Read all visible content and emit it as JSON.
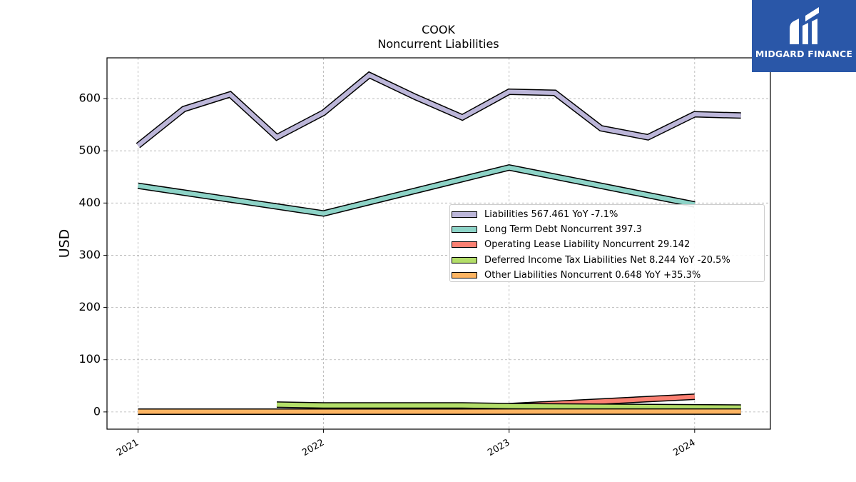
{
  "header": {
    "ticker": "COOK",
    "subtitle": "Noncurrent  Liabilities"
  },
  "logo": {
    "text": "MIDGARD FINANCE",
    "background": "#2a57a8"
  },
  "chart_data": {
    "type": "area",
    "ylabel": "USD",
    "xlabel": "",
    "ylim": [
      -33,
      678
    ],
    "yticks": [
      0,
      100,
      200,
      300,
      400,
      500,
      600
    ],
    "xlim": [
      "2020-11-01",
      "2024-05-29"
    ],
    "xticks": [
      "2021-01-01",
      "2022-01-01",
      "2023-01-01",
      "2024-01-01"
    ],
    "xtick_labels": [
      "2021",
      "2022",
      "2023",
      "2024"
    ],
    "grid": true,
    "legend_position": "center-right",
    "series": [
      {
        "name": "Liabilities",
        "legend_label": "Liabilities  567.461 YoY -7.1%",
        "color": "#bcb6d9",
        "x": [
          "2021-01-01",
          "2021-04-01",
          "2021-07-01",
          "2021-10-01",
          "2022-01-01",
          "2022-04-01",
          "2022-07-01",
          "2022-10-01",
          "2023-01-01",
          "2023-04-01",
          "2023-07-01",
          "2023-10-01",
          "2024-01-01",
          "2024-04-01"
        ],
        "values": [
          510,
          580,
          608,
          526,
          573,
          645,
          603,
          564,
          613,
          611,
          543,
          526,
          570,
          567.461
        ]
      },
      {
        "name": "Long Term Debt Noncurrent",
        "legend_label": "Long Term Debt Noncurrent  397.3",
        "color": "#8dd3c7",
        "x": [
          "2021-01-01",
          "2022-01-01",
          "2023-01-01",
          "2024-01-01"
        ],
        "values": [
          433,
          380,
          468,
          397.3
        ]
      },
      {
        "name": "Operating Lease Liability Noncurrent",
        "legend_label": "Operating Lease Liability Noncurrent  29.142",
        "color": "#fb8072",
        "x": [
          "2023-01-01",
          "2024-01-01"
        ],
        "values": [
          11,
          29.142
        ]
      },
      {
        "name": "Deferred Income Tax Liabilities Net",
        "legend_label": "Deferred Income Tax Liabilities Net  8.244 YoY -20.5%",
        "color": "#b3de69",
        "x": [
          "2021-10-01",
          "2022-01-01",
          "2022-07-01",
          "2022-10-01",
          "2023-01-01",
          "2024-04-01"
        ],
        "values": [
          14,
          12.5,
          12.5,
          12.5,
          11,
          8.244
        ]
      },
      {
        "name": "Other Liabilities Noncurrent",
        "legend_label": "Other Liabilities Noncurrent  0.648 YoY +35.3%",
        "color": "#fdb462",
        "x": [
          "2021-01-01",
          "2024-04-01"
        ],
        "values": [
          0.5,
          0.648
        ]
      }
    ]
  }
}
